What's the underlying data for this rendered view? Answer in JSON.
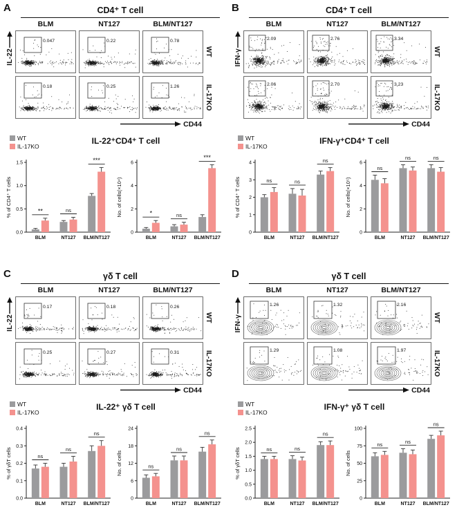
{
  "figure": {
    "panel_labels": [
      "A",
      "B",
      "C",
      "D"
    ]
  },
  "legend": {
    "wt": "WT",
    "ko": "IL-17KO"
  },
  "colors": {
    "wt": "#9b9b9d",
    "ko": "#f4928e"
  },
  "chart_data": [
    {
      "panel": "A",
      "type": "scatter",
      "plot_style": "dots",
      "title": "CD4⁺ T cell",
      "columns": [
        "BLM",
        "NT127",
        "BLM/NT127"
      ],
      "rows": [
        "WT",
        "IL-17KO"
      ],
      "xlabel": "CD44",
      "ylabel": "IL-22",
      "gate_percent": [
        [
          "0.047",
          "0.22",
          "0.78"
        ],
        [
          "0.18",
          "0.25",
          "1.26"
        ]
      ]
    },
    {
      "panel": "A",
      "type": "bar",
      "title": "IL-22⁺CD4⁺ T cell",
      "ylabel": "% of CD4⁺ T cells",
      "ylim": [
        0,
        1.5
      ],
      "yticks": [
        "0.0",
        "0.5",
        "1.0",
        "1.5"
      ],
      "categories": [
        "BLM",
        "NT127",
        "BLM/NT127"
      ],
      "series": [
        {
          "name": "WT",
          "color": "#9b9b9d",
          "values": [
            0.06,
            0.22,
            0.78
          ],
          "errors": [
            0.02,
            0.03,
            0.05
          ]
        },
        {
          "name": "IL-17KO",
          "color": "#f4928e",
          "values": [
            0.25,
            0.27,
            1.3
          ],
          "errors": [
            0.05,
            0.05,
            0.09
          ]
        }
      ],
      "significance": [
        "**",
        "ns",
        "***"
      ]
    },
    {
      "panel": "A",
      "type": "bar",
      "title": "IL-22⁺CD4⁺ T cell",
      "ylabel": "No. of cells(×10⁴)",
      "ylim": [
        0,
        6
      ],
      "yticks": [
        "0",
        "2",
        "4",
        "6"
      ],
      "categories": [
        "BLM",
        "NT127",
        "BLM/NT127"
      ],
      "series": [
        {
          "name": "WT",
          "color": "#9b9b9d",
          "values": [
            0.3,
            0.5,
            1.3
          ],
          "errors": [
            0.1,
            0.15,
            0.2
          ]
        },
        {
          "name": "IL-17KO",
          "color": "#f4928e",
          "values": [
            0.8,
            0.65,
            5.5
          ],
          "errors": [
            0.2,
            0.2,
            0.3
          ]
        }
      ],
      "significance": [
        "*",
        "ns",
        "***"
      ]
    },
    {
      "panel": "B",
      "type": "scatter",
      "plot_style": "dense",
      "title": "CD4⁺ T cell",
      "columns": [
        "BLM",
        "NT127",
        "BLM/NT127"
      ],
      "rows": [
        "WT",
        "IL-17KO"
      ],
      "xlabel": "CD44",
      "ylabel": "IFN-γ",
      "gate_percent": [
        [
          "2.09",
          "2.76",
          "3.34"
        ],
        [
          "2.06",
          "2.70",
          "3.23"
        ]
      ]
    },
    {
      "panel": "B",
      "type": "bar",
      "title": "IFN-γ⁺CD4⁺ T cell",
      "ylabel": "% of CD4⁺ T cells",
      "ylim": [
        0,
        4
      ],
      "yticks": [
        "0",
        "1",
        "2",
        "3",
        "4"
      ],
      "categories": [
        "BLM",
        "NT127",
        "BLM/NT127"
      ],
      "series": [
        {
          "name": "WT",
          "color": "#9b9b9d",
          "values": [
            2.0,
            2.2,
            3.3
          ],
          "errors": [
            0.15,
            0.3,
            0.2
          ]
        },
        {
          "name": "IL-17KO",
          "color": "#f4928e",
          "values": [
            2.3,
            2.1,
            3.5
          ],
          "errors": [
            0.25,
            0.35,
            0.2
          ]
        }
      ],
      "significance": [
        "ns",
        "ns",
        "ns"
      ]
    },
    {
      "panel": "B",
      "type": "bar",
      "title": "IFN-γ⁺CD4⁺ T cell",
      "ylabel": "No. of cells(×10⁵)",
      "ylim": [
        0,
        6
      ],
      "yticks": [
        "0",
        "2",
        "4",
        "6"
      ],
      "categories": [
        "BLM",
        "NT127",
        "BLM/NT127"
      ],
      "series": [
        {
          "name": "WT",
          "color": "#9b9b9d",
          "values": [
            4.5,
            5.5,
            5.5
          ],
          "errors": [
            0.4,
            0.3,
            0.3
          ]
        },
        {
          "name": "IL-17KO",
          "color": "#f4928e",
          "values": [
            4.2,
            5.3,
            5.2
          ],
          "errors": [
            0.4,
            0.3,
            0.35
          ]
        }
      ],
      "significance": [
        "ns",
        "ns",
        "ns"
      ]
    },
    {
      "panel": "C",
      "type": "scatter",
      "plot_style": "dots",
      "title": "γδ T cell",
      "columns": [
        "BLM",
        "NT127",
        "BLM/NT127"
      ],
      "rows": [
        "WT",
        "IL-17KO"
      ],
      "xlabel": "CD44",
      "ylabel": "IL-22",
      "gate_percent": [
        [
          "0.17",
          "0.18",
          "0.26"
        ],
        [
          "0.25",
          "0.27",
          "0.31"
        ]
      ]
    },
    {
      "panel": "C",
      "type": "bar",
      "title": "IL-22⁺ γδ T cell",
      "ylabel": "% of γδT cells",
      "ylim": [
        0,
        0.4
      ],
      "yticks": [
        "0.0",
        "0.1",
        "0.2",
        "0.3",
        "0.4"
      ],
      "categories": [
        "BLM",
        "NT127",
        "BLM/NT127"
      ],
      "series": [
        {
          "name": "WT",
          "color": "#9b9b9d",
          "values": [
            0.17,
            0.18,
            0.27
          ],
          "errors": [
            0.02,
            0.02,
            0.03
          ]
        },
        {
          "name": "IL-17KO",
          "color": "#f4928e",
          "values": [
            0.18,
            0.21,
            0.3
          ],
          "errors": [
            0.02,
            0.03,
            0.03
          ]
        }
      ],
      "significance": [
        "ns",
        "ns",
        "ns"
      ]
    },
    {
      "panel": "C",
      "type": "bar",
      "title": "IL-22⁺ γδ T cell",
      "ylabel": "No. of cells",
      "ylim": [
        0,
        24
      ],
      "yticks": [
        "0",
        "6",
        "12",
        "18",
        "24"
      ],
      "categories": [
        "BLM",
        "NT127",
        "BLM/NT127"
      ],
      "series": [
        {
          "name": "WT",
          "color": "#9b9b9d",
          "values": [
            7,
            13,
            16
          ],
          "errors": [
            1,
            1.5,
            1.5
          ]
        },
        {
          "name": "IL-17KO",
          "color": "#f4928e",
          "values": [
            7.5,
            13,
            18.5
          ],
          "errors": [
            1,
            1.5,
            1.5
          ]
        }
      ],
      "significance": [
        "ns",
        "ns",
        "ns"
      ]
    },
    {
      "panel": "D",
      "type": "scatter",
      "plot_style": "contour",
      "title": "γδ T cell",
      "columns": [
        "BLM",
        "NT127",
        "BLM/NT127"
      ],
      "rows": [
        "WT",
        "IL-17KO"
      ],
      "xlabel": "CD44",
      "ylabel": "IFN-γ",
      "gate_percent": [
        [
          "1.26",
          "1.32",
          "2.16"
        ],
        [
          "1.29",
          "1.08",
          "1.97"
        ]
      ]
    },
    {
      "panel": "D",
      "type": "bar",
      "title": "IFN-γ⁺ γδ T cell",
      "ylabel": "% of γδT cells",
      "ylim": [
        0,
        2.5
      ],
      "yticks": [
        "0.0",
        "0.5",
        "1.0",
        "1.5",
        "2.0",
        "2.5"
      ],
      "categories": [
        "BLM",
        "NT127",
        "BLM/NT127"
      ],
      "series": [
        {
          "name": "WT",
          "color": "#9b9b9d",
          "values": [
            1.4,
            1.4,
            1.9
          ],
          "errors": [
            0.1,
            0.12,
            0.12
          ]
        },
        {
          "name": "IL-17KO",
          "color": "#f4928e",
          "values": [
            1.4,
            1.35,
            1.9
          ],
          "errors": [
            0.1,
            0.12,
            0.15
          ]
        }
      ],
      "significance": [
        "ns",
        "ns",
        "ns"
      ]
    },
    {
      "panel": "D",
      "type": "bar",
      "title": "IFN-γ⁺ γδ T cell",
      "ylabel": "No. of cells",
      "ylim": [
        0,
        100
      ],
      "yticks": [
        "0",
        "25",
        "50",
        "75",
        "100"
      ],
      "categories": [
        "BLM",
        "NT127",
        "BLM/NT127"
      ],
      "series": [
        {
          "name": "WT",
          "color": "#9b9b9d",
          "values": [
            60,
            65,
            85
          ],
          "errors": [
            5,
            6,
            5
          ]
        },
        {
          "name": "IL-17KO",
          "color": "#f4928e",
          "values": [
            62,
            63,
            90
          ],
          "errors": [
            5,
            6,
            6
          ]
        }
      ],
      "significance": [
        "ns",
        "ns",
        "ns"
      ]
    }
  ]
}
